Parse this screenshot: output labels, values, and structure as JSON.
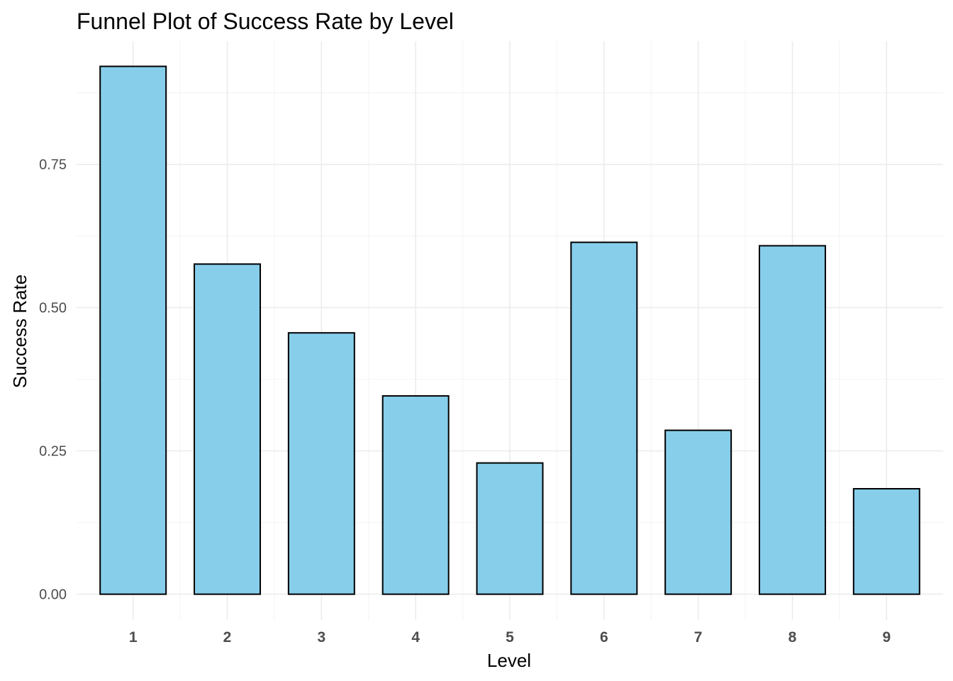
{
  "chart_data": {
    "type": "bar",
    "title": "Funnel Plot of Success Rate by Level",
    "xlabel": "Level",
    "ylabel": "Success Rate",
    "categories": [
      "1",
      "2",
      "3",
      "4",
      "5",
      "6",
      "7",
      "8",
      "9"
    ],
    "values": [
      0.921,
      0.576,
      0.456,
      0.346,
      0.229,
      0.614,
      0.286,
      0.608,
      0.184
    ],
    "ylim": [
      -0.045,
      0.965
    ],
    "yticks": [
      0.0,
      0.25,
      0.5,
      0.75
    ],
    "ytick_labels": [
      "0.00",
      "0.25",
      "0.50",
      "0.75"
    ],
    "grid": true,
    "legend": "none",
    "colors": {
      "bar_fill": "#87CEEB",
      "bar_stroke": "#000000",
      "grid_major": "#ebebeb",
      "grid_minor": "#f4f4f4"
    }
  }
}
